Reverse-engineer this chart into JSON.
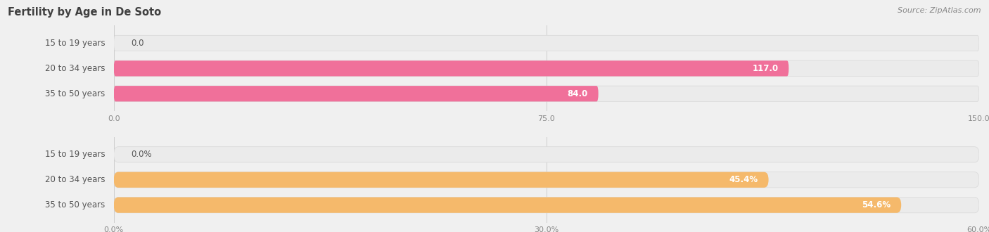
{
  "title": "Fertility by Age in De Soto",
  "source_text": "Source: ZipAtlas.com",
  "top_chart": {
    "categories": [
      "15 to 19 years",
      "20 to 34 years",
      "35 to 50 years"
    ],
    "values": [
      0.0,
      117.0,
      84.0
    ],
    "xmin": 0,
    "xmax": 150,
    "xticks": [
      0.0,
      75.0,
      150.0
    ],
    "xtick_labels": [
      "0.0",
      "75.0",
      "150.0"
    ],
    "bar_color": "#f0709a",
    "bar_bg_color": "#ebebeb",
    "value_threshold": 10
  },
  "bottom_chart": {
    "categories": [
      "15 to 19 years",
      "20 to 34 years",
      "35 to 50 years"
    ],
    "values": [
      0.0,
      45.4,
      54.6
    ],
    "xmin": 0,
    "xmax": 60,
    "xticks": [
      0.0,
      30.0,
      60.0
    ],
    "xtick_labels": [
      "0.0%",
      "30.0%",
      "60.0%"
    ],
    "bar_color": "#f5b96b",
    "bar_bg_color": "#ebebeb",
    "value_threshold": 5
  },
  "label_fontsize": 8.5,
  "category_fontsize": 8.5,
  "tick_fontsize": 8,
  "title_fontsize": 10.5,
  "source_fontsize": 8,
  "bar_height": 0.62,
  "background_color": "#f0f0f0",
  "cat_label_color": "#555555",
  "tick_color": "#888888",
  "grid_color": "#cccccc",
  "title_color": "#404040",
  "source_color": "#888888"
}
